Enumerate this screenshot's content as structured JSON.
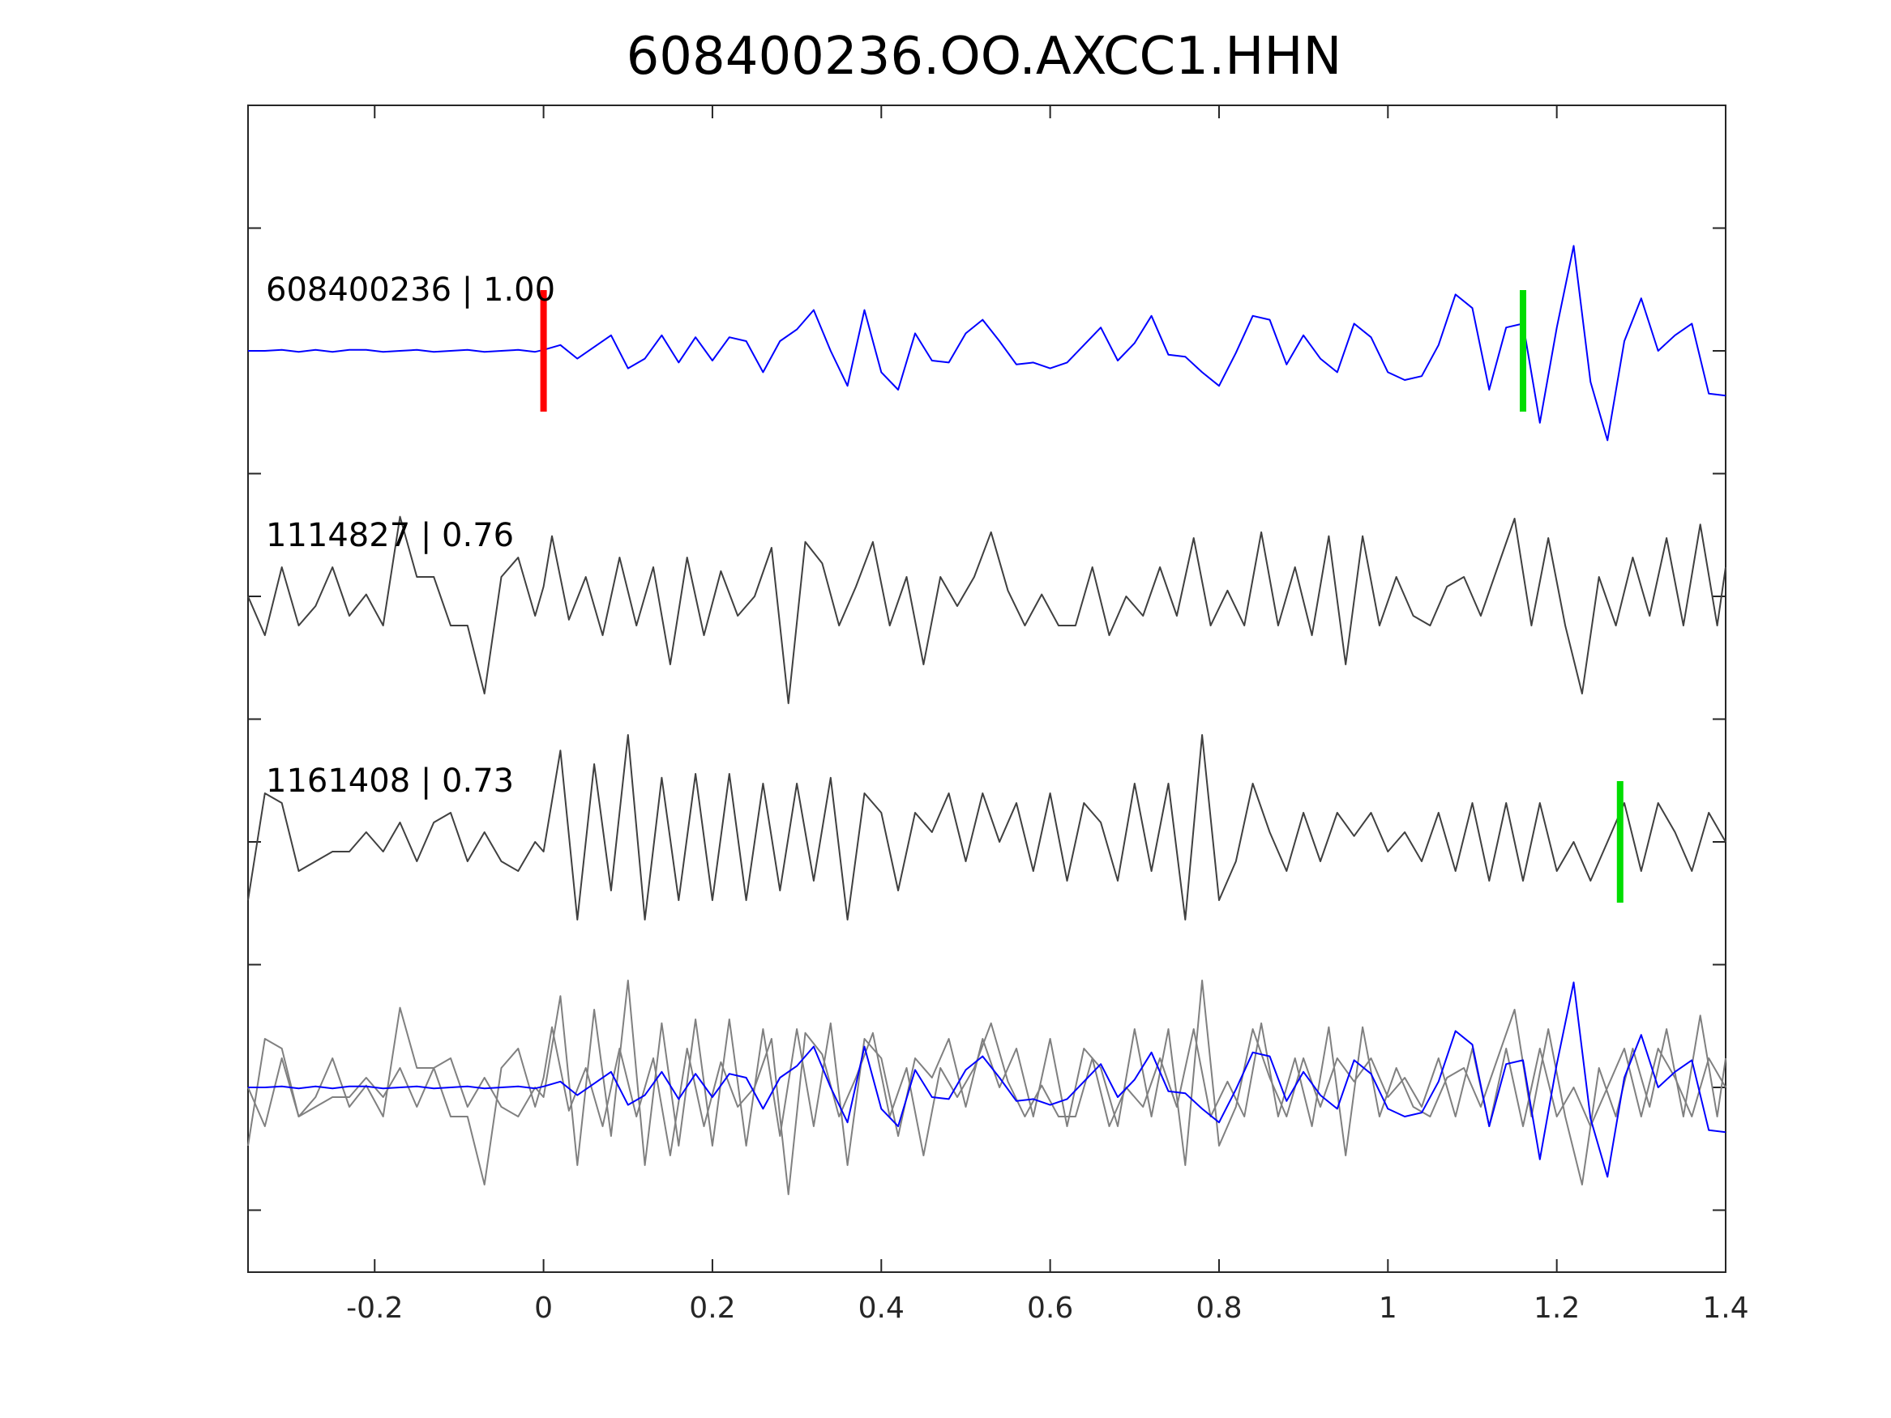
{
  "chart_data": {
    "type": "line",
    "title": "608400236.OO.AXCC1.HHN",
    "xlim": [
      -0.35,
      1.4
    ],
    "x_ticks": [
      -0.2,
      0,
      0.2,
      0.4,
      0.6,
      0.8,
      1,
      1.2,
      1.4
    ],
    "x_tick_labels": [
      "-0.2",
      "0",
      "0.2",
      "0.4",
      "0.6",
      "0.8",
      "1",
      "1.2",
      "1.4"
    ],
    "xlabel": "",
    "ylabel": "",
    "grid": false,
    "colors": {
      "primary": "#0000ff",
      "secondary": "#404040",
      "overlay": "#808080",
      "pick_p": "#ff0000",
      "pick_s": "#00dd00",
      "axes": "#262626"
    },
    "traces": [
      {
        "label": "608400236 | 1.00",
        "event_id": "608400236",
        "correlation": 1.0,
        "color": "#0000ff",
        "samples": [
          [
            -0.35,
            0.0
          ],
          [
            -0.33,
            0.0
          ],
          [
            -0.31,
            0.01
          ],
          [
            -0.29,
            -0.01
          ],
          [
            -0.27,
            0.01
          ],
          [
            -0.25,
            -0.01
          ],
          [
            -0.23,
            0.01
          ],
          [
            -0.21,
            0.01
          ],
          [
            -0.19,
            -0.01
          ],
          [
            -0.17,
            0.0
          ],
          [
            -0.15,
            0.01
          ],
          [
            -0.13,
            -0.01
          ],
          [
            -0.11,
            0.0
          ],
          [
            -0.09,
            0.01
          ],
          [
            -0.07,
            -0.01
          ],
          [
            -0.05,
            0.0
          ],
          [
            -0.03,
            0.01
          ],
          [
            -0.01,
            -0.01
          ],
          [
            0.0,
            0.01
          ],
          [
            0.02,
            0.06
          ],
          [
            0.04,
            -0.08
          ],
          [
            0.06,
            0.04
          ],
          [
            0.08,
            0.16
          ],
          [
            0.1,
            -0.18
          ],
          [
            0.12,
            -0.08
          ],
          [
            0.14,
            0.16
          ],
          [
            0.16,
            -0.12
          ],
          [
            0.18,
            0.14
          ],
          [
            0.2,
            -0.1
          ],
          [
            0.22,
            0.14
          ],
          [
            0.24,
            0.1
          ],
          [
            0.26,
            -0.22
          ],
          [
            0.28,
            0.1
          ],
          [
            0.3,
            0.22
          ],
          [
            0.32,
            0.42
          ],
          [
            0.34,
            0.0
          ],
          [
            0.36,
            -0.36
          ],
          [
            0.38,
            0.42
          ],
          [
            0.4,
            -0.22
          ],
          [
            0.42,
            -0.4
          ],
          [
            0.44,
            0.18
          ],
          [
            0.46,
            -0.1
          ],
          [
            0.48,
            -0.12
          ],
          [
            0.5,
            0.18
          ],
          [
            0.52,
            0.32
          ],
          [
            0.54,
            0.1
          ],
          [
            0.56,
            -0.14
          ],
          [
            0.58,
            -0.12
          ],
          [
            0.6,
            -0.18
          ],
          [
            0.62,
            -0.12
          ],
          [
            0.64,
            0.06
          ],
          [
            0.66,
            0.24
          ],
          [
            0.68,
            -0.1
          ],
          [
            0.7,
            0.08
          ],
          [
            0.72,
            0.36
          ],
          [
            0.74,
            -0.04
          ],
          [
            0.76,
            -0.06
          ],
          [
            0.78,
            -0.22
          ],
          [
            0.8,
            -0.36
          ],
          [
            0.82,
            -0.02
          ],
          [
            0.84,
            0.36
          ],
          [
            0.86,
            0.32
          ],
          [
            0.88,
            -0.14
          ],
          [
            0.9,
            0.16
          ],
          [
            0.92,
            -0.08
          ],
          [
            0.94,
            -0.22
          ],
          [
            0.96,
            0.28
          ],
          [
            0.98,
            0.14
          ],
          [
            1.0,
            -0.22
          ],
          [
            1.02,
            -0.3
          ],
          [
            1.04,
            -0.26
          ],
          [
            1.06,
            0.06
          ],
          [
            1.08,
            0.58
          ],
          [
            1.1,
            0.44
          ],
          [
            1.12,
            -0.4
          ],
          [
            1.14,
            0.24
          ],
          [
            1.16,
            0.28
          ],
          [
            1.18,
            -0.74
          ],
          [
            1.2,
            0.24
          ],
          [
            1.22,
            1.08
          ],
          [
            1.24,
            -0.32
          ],
          [
            1.26,
            -0.92
          ],
          [
            1.28,
            0.1
          ],
          [
            1.3,
            0.54
          ],
          [
            1.32,
            0.0
          ],
          [
            1.34,
            0.16
          ],
          [
            1.36,
            0.28
          ],
          [
            1.38,
            -0.44
          ],
          [
            1.4,
            -0.46
          ]
        ]
      },
      {
        "label": "1114827 | 0.76",
        "event_id": "1114827",
        "correlation": 0.76,
        "color": "#404040",
        "samples": [
          [
            -0.35,
            0.0
          ],
          [
            -0.33,
            -0.4
          ],
          [
            -0.31,
            0.3
          ],
          [
            -0.29,
            -0.3
          ],
          [
            -0.27,
            -0.1
          ],
          [
            -0.25,
            0.3
          ],
          [
            -0.23,
            -0.2
          ],
          [
            -0.21,
            0.02
          ],
          [
            -0.19,
            -0.3
          ],
          [
            -0.17,
            0.82
          ],
          [
            -0.15,
            0.2
          ],
          [
            -0.13,
            0.2
          ],
          [
            -0.11,
            -0.3
          ],
          [
            -0.09,
            -0.3
          ],
          [
            -0.07,
            -1.0
          ],
          [
            -0.05,
            0.2
          ],
          [
            -0.03,
            0.4
          ],
          [
            -0.01,
            -0.2
          ],
          [
            0.0,
            0.1
          ],
          [
            0.01,
            0.62
          ],
          [
            0.03,
            -0.24
          ],
          [
            0.05,
            0.2
          ],
          [
            0.07,
            -0.4
          ],
          [
            0.09,
            0.4
          ],
          [
            0.11,
            -0.3
          ],
          [
            0.13,
            0.3
          ],
          [
            0.15,
            -0.7
          ],
          [
            0.17,
            0.4
          ],
          [
            0.19,
            -0.4
          ],
          [
            0.21,
            0.26
          ],
          [
            0.23,
            -0.2
          ],
          [
            0.25,
            0.0
          ],
          [
            0.27,
            0.5
          ],
          [
            0.29,
            -1.1
          ],
          [
            0.31,
            0.56
          ],
          [
            0.33,
            0.34
          ],
          [
            0.35,
            -0.3
          ],
          [
            0.37,
            0.1
          ],
          [
            0.39,
            0.56
          ],
          [
            0.41,
            -0.3
          ],
          [
            0.43,
            0.2
          ],
          [
            0.45,
            -0.7
          ],
          [
            0.47,
            0.2
          ],
          [
            0.49,
            -0.1
          ],
          [
            0.51,
            0.2
          ],
          [
            0.53,
            0.66
          ],
          [
            0.55,
            0.06
          ],
          [
            0.57,
            -0.3
          ],
          [
            0.59,
            0.02
          ],
          [
            0.61,
            -0.3
          ],
          [
            0.63,
            -0.3
          ],
          [
            0.65,
            0.3
          ],
          [
            0.67,
            -0.4
          ],
          [
            0.69,
            0.0
          ],
          [
            0.71,
            -0.2
          ],
          [
            0.73,
            0.3
          ],
          [
            0.75,
            -0.2
          ],
          [
            0.77,
            0.6
          ],
          [
            0.79,
            -0.3
          ],
          [
            0.81,
            0.06
          ],
          [
            0.83,
            -0.3
          ],
          [
            0.85,
            0.66
          ],
          [
            0.87,
            -0.3
          ],
          [
            0.89,
            0.3
          ],
          [
            0.91,
            -0.4
          ],
          [
            0.93,
            0.62
          ],
          [
            0.95,
            -0.7
          ],
          [
            0.97,
            0.62
          ],
          [
            0.99,
            -0.3
          ],
          [
            1.01,
            0.2
          ],
          [
            1.03,
            -0.2
          ],
          [
            1.05,
            -0.3
          ],
          [
            1.07,
            0.1
          ],
          [
            1.09,
            0.2
          ],
          [
            1.11,
            -0.2
          ],
          [
            1.13,
            0.3
          ],
          [
            1.15,
            0.8
          ],
          [
            1.17,
            -0.3
          ],
          [
            1.19,
            0.6
          ],
          [
            1.21,
            -0.3
          ],
          [
            1.23,
            -1.0
          ],
          [
            1.25,
            0.2
          ],
          [
            1.27,
            -0.3
          ],
          [
            1.29,
            0.4
          ],
          [
            1.31,
            -0.2
          ],
          [
            1.33,
            0.6
          ],
          [
            1.35,
            -0.3
          ],
          [
            1.37,
            0.74
          ],
          [
            1.39,
            -0.3
          ],
          [
            1.4,
            0.3
          ]
        ]
      },
      {
        "label": "1161408 | 0.73",
        "event_id": "1161408",
        "correlation": 0.73,
        "color": "#404040",
        "samples": [
          [
            -0.35,
            -0.6
          ],
          [
            -0.33,
            0.5
          ],
          [
            -0.31,
            0.4
          ],
          [
            -0.29,
            -0.3
          ],
          [
            -0.27,
            -0.2
          ],
          [
            -0.25,
            -0.1
          ],
          [
            -0.23,
            -0.1
          ],
          [
            -0.21,
            0.1
          ],
          [
            -0.19,
            -0.1
          ],
          [
            -0.17,
            0.2
          ],
          [
            -0.15,
            -0.2
          ],
          [
            -0.13,
            0.2
          ],
          [
            -0.11,
            0.3
          ],
          [
            -0.09,
            -0.2
          ],
          [
            -0.07,
            0.1
          ],
          [
            -0.05,
            -0.2
          ],
          [
            -0.03,
            -0.3
          ],
          [
            -0.01,
            0.0
          ],
          [
            0.0,
            -0.1
          ],
          [
            0.02,
            0.94
          ],
          [
            0.04,
            -0.8
          ],
          [
            0.06,
            0.8
          ],
          [
            0.08,
            -0.5
          ],
          [
            0.1,
            1.1
          ],
          [
            0.12,
            -0.8
          ],
          [
            0.14,
            0.66
          ],
          [
            0.16,
            -0.6
          ],
          [
            0.18,
            0.7
          ],
          [
            0.2,
            -0.6
          ],
          [
            0.22,
            0.7
          ],
          [
            0.24,
            -0.6
          ],
          [
            0.26,
            0.6
          ],
          [
            0.28,
            -0.5
          ],
          [
            0.3,
            0.6
          ],
          [
            0.32,
            -0.4
          ],
          [
            0.34,
            0.66
          ],
          [
            0.36,
            -0.8
          ],
          [
            0.38,
            0.5
          ],
          [
            0.4,
            0.3
          ],
          [
            0.42,
            -0.5
          ],
          [
            0.44,
            0.3
          ],
          [
            0.46,
            0.1
          ],
          [
            0.48,
            0.5
          ],
          [
            0.5,
            -0.2
          ],
          [
            0.52,
            0.5
          ],
          [
            0.54,
            0.0
          ],
          [
            0.56,
            0.4
          ],
          [
            0.58,
            -0.3
          ],
          [
            0.6,
            0.5
          ],
          [
            0.62,
            -0.4
          ],
          [
            0.64,
            0.4
          ],
          [
            0.66,
            0.2
          ],
          [
            0.68,
            -0.4
          ],
          [
            0.7,
            0.6
          ],
          [
            0.72,
            -0.3
          ],
          [
            0.74,
            0.6
          ],
          [
            0.76,
            -0.8
          ],
          [
            0.78,
            1.1
          ],
          [
            0.8,
            -0.6
          ],
          [
            0.82,
            -0.2
          ],
          [
            0.84,
            0.6
          ],
          [
            0.86,
            0.1
          ],
          [
            0.88,
            -0.3
          ],
          [
            0.9,
            0.3
          ],
          [
            0.92,
            -0.2
          ],
          [
            0.94,
            0.3
          ],
          [
            0.96,
            0.06
          ],
          [
            0.98,
            0.3
          ],
          [
            1.0,
            -0.1
          ],
          [
            1.02,
            0.1
          ],
          [
            1.04,
            -0.2
          ],
          [
            1.06,
            0.3
          ],
          [
            1.08,
            -0.3
          ],
          [
            1.1,
            0.4
          ],
          [
            1.12,
            -0.4
          ],
          [
            1.14,
            0.4
          ],
          [
            1.16,
            -0.4
          ],
          [
            1.18,
            0.4
          ],
          [
            1.2,
            -0.3
          ],
          [
            1.22,
            0.0
          ],
          [
            1.24,
            -0.4
          ],
          [
            1.26,
            0.0
          ],
          [
            1.28,
            0.4
          ],
          [
            1.3,
            -0.3
          ],
          [
            1.32,
            0.4
          ],
          [
            1.34,
            0.1
          ],
          [
            1.36,
            -0.3
          ],
          [
            1.38,
            0.3
          ],
          [
            1.4,
            0.0
          ]
        ]
      }
    ],
    "picks": [
      {
        "trace": 0,
        "x": 0.0,
        "color": "#ff0000"
      },
      {
        "trace": 0,
        "x": 1.16,
        "color": "#00dd00"
      },
      {
        "trace": 2,
        "x": 1.275,
        "color": "#00dd00"
      }
    ],
    "overlay_row": true
  }
}
